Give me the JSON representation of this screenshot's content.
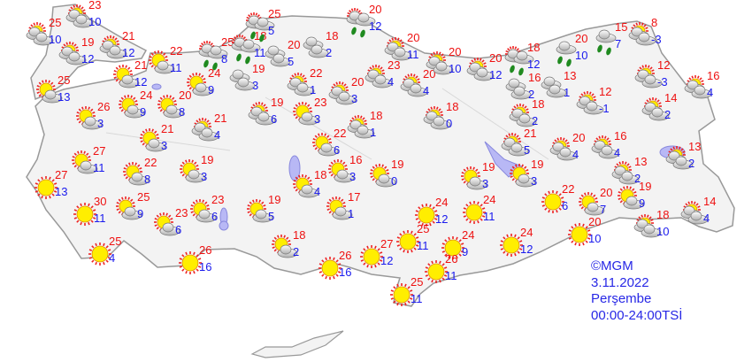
{
  "colors": {
    "max_temp": "#ee1111",
    "min_temp": "#1a1aee",
    "land": "#f3f3f3",
    "border": "#999999",
    "water": "#b8b8f5",
    "sun": "#ffee00",
    "sun_rays": "#ee2222",
    "rain": "#1f8a1f",
    "legend": "#2828e6"
  },
  "legend": {
    "copyright": "©MGM",
    "date": "3.11.2022",
    "weekday": "Perşembe",
    "period": "00:00-24:00TSİ"
  },
  "stations": [
    {
      "max": "23",
      "min": "10",
      "condition": "partly-cloudy"
    },
    {
      "max": "25",
      "min": "10",
      "condition": "partly-cloudy"
    },
    {
      "max": "19",
      "min": "12",
      "condition": "partly-cloudy"
    },
    {
      "max": "21",
      "min": "12",
      "condition": "partly-cloudy"
    },
    {
      "max": "22",
      "min": "11",
      "condition": "mostly-sunny"
    },
    {
      "max": "21",
      "min": "12",
      "condition": "mostly-sunny"
    },
    {
      "max": "25",
      "min": "13",
      "condition": "mostly-sunny"
    },
    {
      "max": "24",
      "min": "9",
      "condition": "mostly-sunny"
    },
    {
      "max": "20",
      "min": "8",
      "condition": "mostly-sunny"
    },
    {
      "max": "26",
      "min": "3",
      "condition": "mostly-sunny"
    },
    {
      "max": "21",
      "min": "3",
      "condition": "mostly-sunny"
    },
    {
      "max": "21",
      "min": "4",
      "condition": "partly-cloudy"
    },
    {
      "max": "24",
      "min": "9",
      "condition": "mostly-sunny"
    },
    {
      "max": "25",
      "min": "8",
      "condition": "rain-partly"
    },
    {
      "max": "18",
      "min": "11",
      "condition": "rain-partly"
    },
    {
      "max": "25",
      "min": "5",
      "condition": "rain-partly"
    },
    {
      "max": "20",
      "min": "5",
      "condition": "cloudy"
    },
    {
      "max": "18",
      "min": "2",
      "condition": "cloudy"
    },
    {
      "max": "19",
      "min": "3",
      "condition": "cloudy"
    },
    {
      "max": "22",
      "min": "1",
      "condition": "partly-cloudy"
    },
    {
      "max": "20",
      "min": "3",
      "condition": "partly-cloudy"
    },
    {
      "max": "19",
      "min": "6",
      "condition": "partly-cloudy"
    },
    {
      "max": "23",
      "min": "3",
      "condition": "mostly-sunny"
    },
    {
      "max": "18",
      "min": "1",
      "condition": "partly-cloudy"
    },
    {
      "max": "20",
      "min": "12",
      "condition": "rain-partly"
    },
    {
      "max": "20",
      "min": "11",
      "condition": "partly-cloudy"
    },
    {
      "max": "23",
      "min": "4",
      "condition": "partly-cloudy"
    },
    {
      "max": "20",
      "min": "4",
      "condition": "partly-cloudy"
    },
    {
      "max": "20",
      "min": "10",
      "condition": "partly-cloudy"
    },
    {
      "max": "20",
      "min": "12",
      "condition": "partly-cloudy"
    },
    {
      "max": "18",
      "min": "12",
      "condition": "rain-partly"
    },
    {
      "max": "20",
      "min": "10",
      "condition": "rain"
    },
    {
      "max": "15",
      "min": "7",
      "condition": "rain"
    },
    {
      "max": "8",
      "min": "-3",
      "condition": "partly-cloudy"
    },
    {
      "max": "12",
      "min": "-3",
      "condition": "partly-cloudy"
    },
    {
      "max": "16",
      "min": "4",
      "condition": "partly-cloudy"
    },
    {
      "max": "16",
      "min": "2",
      "condition": "cloudy"
    },
    {
      "max": "13",
      "min": "1",
      "condition": "cloudy"
    },
    {
      "max": "12",
      "min": "-1",
      "condition": "partly-cloudy"
    },
    {
      "max": "14",
      "min": "2",
      "condition": "partly-cloudy"
    },
    {
      "max": "18",
      "min": "0",
      "condition": "partly-cloudy"
    },
    {
      "max": "18",
      "min": "2",
      "condition": "partly-cloudy"
    },
    {
      "max": "21",
      "min": "5",
      "condition": "partly-cloudy"
    },
    {
      "max": "20",
      "min": "4",
      "condition": "partly-cloudy"
    },
    {
      "max": "16",
      "min": "4",
      "condition": "partly-cloudy"
    },
    {
      "max": "13",
      "min": "2",
      "condition": "partly-cloudy"
    },
    {
      "max": "13",
      "min": "2",
      "condition": "partly-cloudy"
    },
    {
      "max": "22",
      "min": "6",
      "condition": "mostly-sunny"
    },
    {
      "max": "16",
      "min": "3",
      "condition": "mostly-sunny"
    },
    {
      "max": "19",
      "min": "0",
      "condition": "mostly-sunny"
    },
    {
      "max": "19",
      "min": "3",
      "condition": "mostly-sunny"
    },
    {
      "max": "19",
      "min": "3",
      "condition": "mostly-sunny"
    },
    {
      "max": "22",
      "min": "6",
      "condition": "sunny"
    },
    {
      "max": "20",
      "min": "7",
      "condition": "mostly-sunny"
    },
    {
      "max": "19",
      "min": "9",
      "condition": "mostly-sunny"
    },
    {
      "max": "18",
      "min": "10",
      "condition": "partly-cloudy"
    },
    {
      "max": "14",
      "min": "4",
      "condition": "partly-cloudy"
    },
    {
      "max": "20",
      "min": "10",
      "condition": "sunny"
    },
    {
      "max": "24",
      "min": "12",
      "condition": "sunny"
    },
    {
      "max": "24",
      "min": "11",
      "condition": "sunny"
    },
    {
      "max": "24",
      "min": "12",
      "condition": "sunny"
    },
    {
      "max": "24",
      "min": "9",
      "condition": "sunny"
    },
    {
      "max": "25",
      "min": "11",
      "condition": "sunny"
    },
    {
      "max": "27",
      "min": "12",
      "condition": "sunny"
    },
    {
      "max": "26",
      "min": "11",
      "condition": "sunny"
    },
    {
      "max": "25",
      "min": "11",
      "condition": "sunny"
    },
    {
      "max": "26",
      "min": "16",
      "condition": "sunny"
    },
    {
      "max": "26",
      "min": "16",
      "condition": "sunny"
    },
    {
      "max": "18",
      "min": "2",
      "condition": "mostly-sunny"
    },
    {
      "max": "19",
      "min": "5",
      "condition": "mostly-sunny"
    },
    {
      "max": "23",
      "min": "6",
      "condition": "mostly-sunny"
    },
    {
      "max": "23",
      "min": "6",
      "condition": "mostly-sunny"
    },
    {
      "max": "25",
      "min": "9",
      "condition": "mostly-sunny"
    },
    {
      "max": "30",
      "min": "11",
      "condition": "sunny"
    },
    {
      "max": "25",
      "min": "4",
      "condition": "sunny"
    },
    {
      "max": "27",
      "min": "13",
      "condition": "sunny"
    },
    {
      "max": "27",
      "min": "11",
      "condition": "mostly-sunny"
    },
    {
      "max": "22",
      "min": "8",
      "condition": "mostly-sunny"
    },
    {
      "max": "19",
      "min": "3",
      "condition": "mostly-sunny"
    },
    {
      "max": "18",
      "min": "4",
      "condition": "mostly-sunny"
    },
    {
      "max": "17",
      "min": "1",
      "condition": "mostly-sunny"
    }
  ]
}
